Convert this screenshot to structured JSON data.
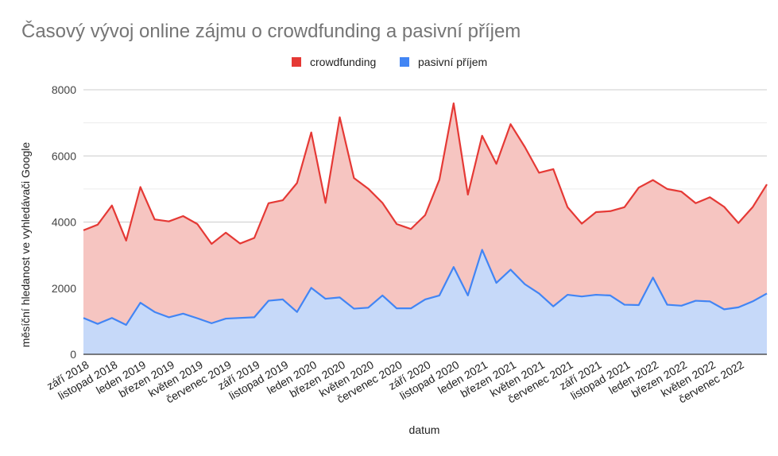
{
  "chart_data": {
    "type": "area",
    "title": "Časový vývoj online zájmu o crowdfunding a pasivní příjem",
    "xlabel": "datum",
    "ylabel": "měsíční hledanost ve vyhledávači Google",
    "ylim": [
      0,
      8000
    ],
    "yticks": [
      "0",
      "2000",
      "4000",
      "6000",
      "8000"
    ],
    "grid": true,
    "legend_position": "top",
    "stacked": true,
    "x_tick_labels": [
      "září 2018",
      "listopad 2018",
      "leden 2019",
      "březen 2019",
      "květen 2019",
      "červenec 2019",
      "září 2019",
      "listopad 2019",
      "leden 2020",
      "březen 2020",
      "květen 2020",
      "červenec 2020",
      "září 2020",
      "listopad 2020",
      "leden 2021",
      "březen 2021",
      "květen 2021",
      "červenec 2021",
      "září 2021",
      "listopad 2021",
      "leden 2022",
      "březen 2022",
      "květen 2022",
      "červenec 2022"
    ],
    "categories": [
      "2018-09",
      "2018-10",
      "2018-11",
      "2018-12",
      "2019-01",
      "2019-02",
      "2019-03",
      "2019-04",
      "2019-05",
      "2019-06",
      "2019-07",
      "2019-08",
      "2019-09",
      "2019-10",
      "2019-11",
      "2019-12",
      "2020-01",
      "2020-02",
      "2020-03",
      "2020-04",
      "2020-05",
      "2020-06",
      "2020-07",
      "2020-08",
      "2020-09",
      "2020-10",
      "2020-11",
      "2020-12",
      "2021-01",
      "2021-02",
      "2021-03",
      "2021-04",
      "2021-05",
      "2021-06",
      "2021-07",
      "2021-08",
      "2021-09",
      "2021-10",
      "2021-11",
      "2021-12",
      "2022-01",
      "2022-02",
      "2022-03",
      "2022-04",
      "2022-05",
      "2022-06",
      "2022-07",
      "2022-08",
      "2022-09"
    ],
    "series": [
      {
        "name": "crowdfunding",
        "color": "#e53935",
        "fill": "#f6c5c1",
        "values": [
          2650,
          3000,
          3400,
          2550,
          3500,
          2800,
          2900,
          2950,
          2850,
          2400,
          2600,
          2250,
          2400,
          2950,
          3000,
          3900,
          4700,
          2900,
          5450,
          3950,
          3600,
          2800,
          2550,
          2400,
          2550,
          3500,
          4950,
          3050,
          3450,
          3600,
          4400,
          4150,
          3650,
          4150,
          2650,
          2200,
          2500,
          2550,
          2950,
          3550,
          2950,
          3500,
          3450,
          2950,
          3150,
          3100,
          2550,
          2850,
          3300
        ]
      },
      {
        "name": "pasivní příjem",
        "color": "#4285f4",
        "fill": "#c6d9f9",
        "values": [
          1100,
          920,
          1100,
          890,
          1560,
          1280,
          1120,
          1230,
          1090,
          940,
          1080,
          1100,
          1120,
          1620,
          1660,
          1280,
          2010,
          1680,
          1720,
          1380,
          1410,
          1780,
          1390,
          1390,
          1660,
          1780,
          2640,
          1780,
          3160,
          2160,
          2560,
          2120,
          1840,
          1450,
          1800,
          1750,
          1800,
          1780,
          1500,
          1490,
          2320,
          1500,
          1470,
          1620,
          1600,
          1360,
          1420,
          1600,
          1840
        ]
      }
    ]
  }
}
